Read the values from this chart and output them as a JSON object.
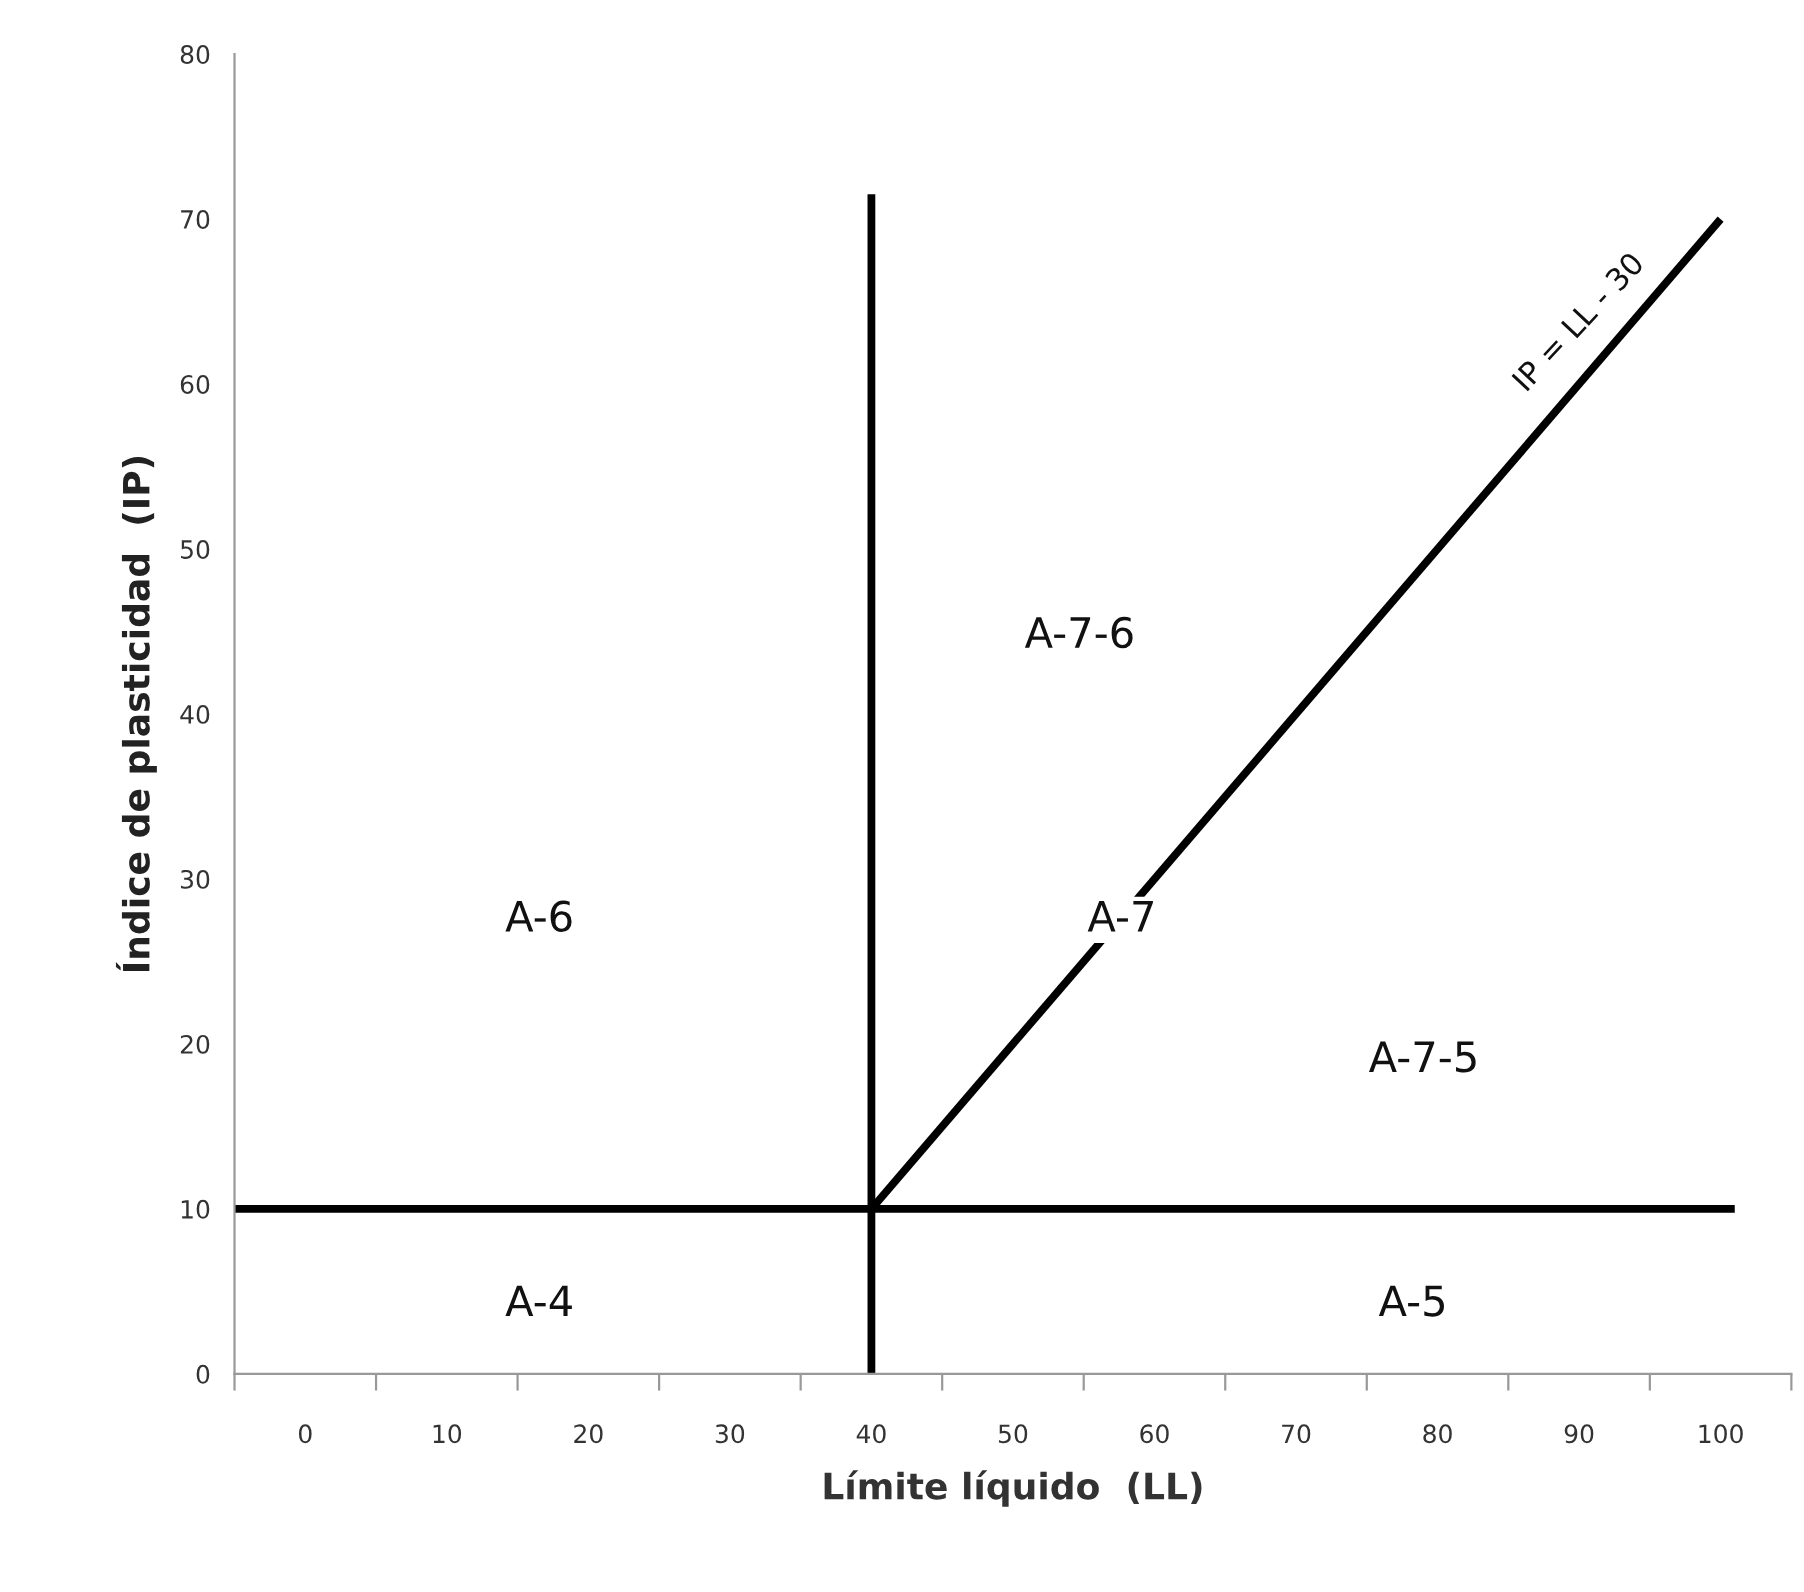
{
  "chart_data": {
    "type": "line",
    "xlabel": "Límite líquido  (LL)",
    "ylabel": "Índice de plasticidad  (IP)",
    "series": [
      {
        "color": "#000000",
        "x": [
          -5,
          101
        ],
        "values": [
          10,
          10
        ]
      },
      {
        "color": "#000000",
        "x": [
          40,
          40
        ],
        "values": [
          0,
          71.5
        ]
      },
      {
        "color": "#000000",
        "x": [
          40,
          100
        ],
        "values": [
          10,
          70
        ]
      }
    ],
    "xlim": [
      -5,
      105
    ],
    "xticks": [
      0,
      10,
      20,
      30,
      40,
      50,
      60,
      70,
      80,
      90,
      100,
      {
        "value": -5,
        "label": null
      },
      {
        "value": 5,
        "label": null
      },
      {
        "value": 15,
        "label": null
      },
      {
        "value": 25,
        "label": null
      },
      {
        "value": 35,
        "label": null
      },
      {
        "value": 45,
        "label": null
      },
      {
        "value": 55,
        "label": null
      },
      {
        "value": 65,
        "label": null
      },
      {
        "value": 75,
        "label": null
      },
      {
        "value": 85,
        "label": null
      },
      {
        "value": 95,
        "label": null
      },
      {
        "value": 105,
        "label": null
      }
    ],
    "ylim": [
      0,
      80
    ],
    "yticks": [
      0,
      10,
      20,
      30,
      40,
      50,
      60,
      70,
      80
    ],
    "grid": false,
    "legend": false,
    "marker": "none",
    "line_style": "solid",
    "annotations": [
      "A-6",
      "A-4",
      "A-7-6",
      "A-7",
      "A-7-5",
      "A-5",
      {
        "text": "IP = LL - 30",
        "x": 92,
        "y": 62
      }
    ]
  }
}
